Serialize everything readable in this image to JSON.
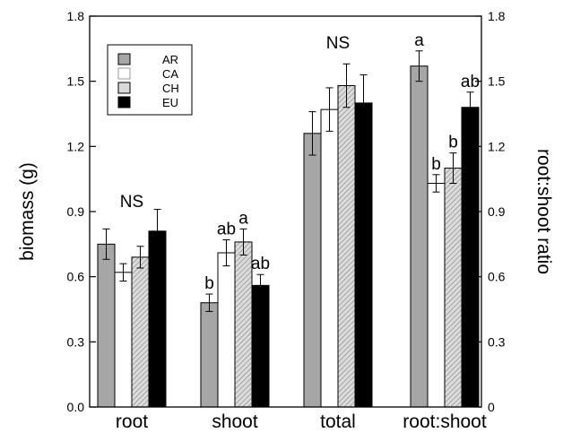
{
  "chart_data": {
    "type": "bar",
    "categories": [
      "root",
      "shoot",
      "total",
      "root:shoot"
    ],
    "series": [
      {
        "name": "AR",
        "color": "#a6a6a6",
        "pattern": "solid",
        "values": [
          0.75,
          0.48,
          1.26,
          1.57
        ],
        "errors": [
          0.07,
          0.04,
          0.1,
          0.07
        ]
      },
      {
        "name": "CA",
        "color": "#ffffff",
        "pattern": "solid",
        "values": [
          0.62,
          0.71,
          1.37,
          1.03
        ],
        "errors": [
          0.04,
          0.06,
          0.1,
          0.04
        ]
      },
      {
        "name": "CH",
        "color": "#d9d9d9",
        "pattern": "hatched",
        "values": [
          0.69,
          0.76,
          1.48,
          1.1
        ],
        "errors": [
          0.05,
          0.06,
          0.1,
          0.07
        ]
      },
      {
        "name": "EU",
        "color": "#000000",
        "pattern": "solid",
        "values": [
          0.81,
          0.56,
          1.4,
          1.38
        ],
        "errors": [
          0.1,
          0.05,
          0.13,
          0.07
        ]
      }
    ],
    "ylabel": "biomass (g)",
    "y2label": "root:shoot ratio",
    "ylim": [
      0.0,
      1.8
    ],
    "yticks": [
      "0.0",
      "0.3",
      "0.6",
      "0.9",
      "1.2",
      "1.5",
      "1.8"
    ],
    "y2ticks": [
      "0",
      "0.3",
      "0.6",
      "0.9",
      "1.2",
      "1.5",
      "1.8"
    ],
    "grid": false,
    "legend_position": "top-left",
    "annotations": [
      {
        "text": "NS",
        "category": 0,
        "y": 0.95
      },
      {
        "text": "b",
        "category": 1,
        "series": 0
      },
      {
        "text": "ab",
        "category": 1,
        "series": 1
      },
      {
        "text": "a",
        "category": 1,
        "series": 2
      },
      {
        "text": "ab",
        "category": 1,
        "series": 3
      },
      {
        "text": "NS",
        "category": 2,
        "y": 1.68
      },
      {
        "text": "a",
        "category": 3,
        "series": 0
      },
      {
        "text": "b",
        "category": 3,
        "series": 1
      },
      {
        "text": "b",
        "category": 3,
        "series": 2
      },
      {
        "text": "ab",
        "category": 3,
        "series": 3
      }
    ]
  }
}
